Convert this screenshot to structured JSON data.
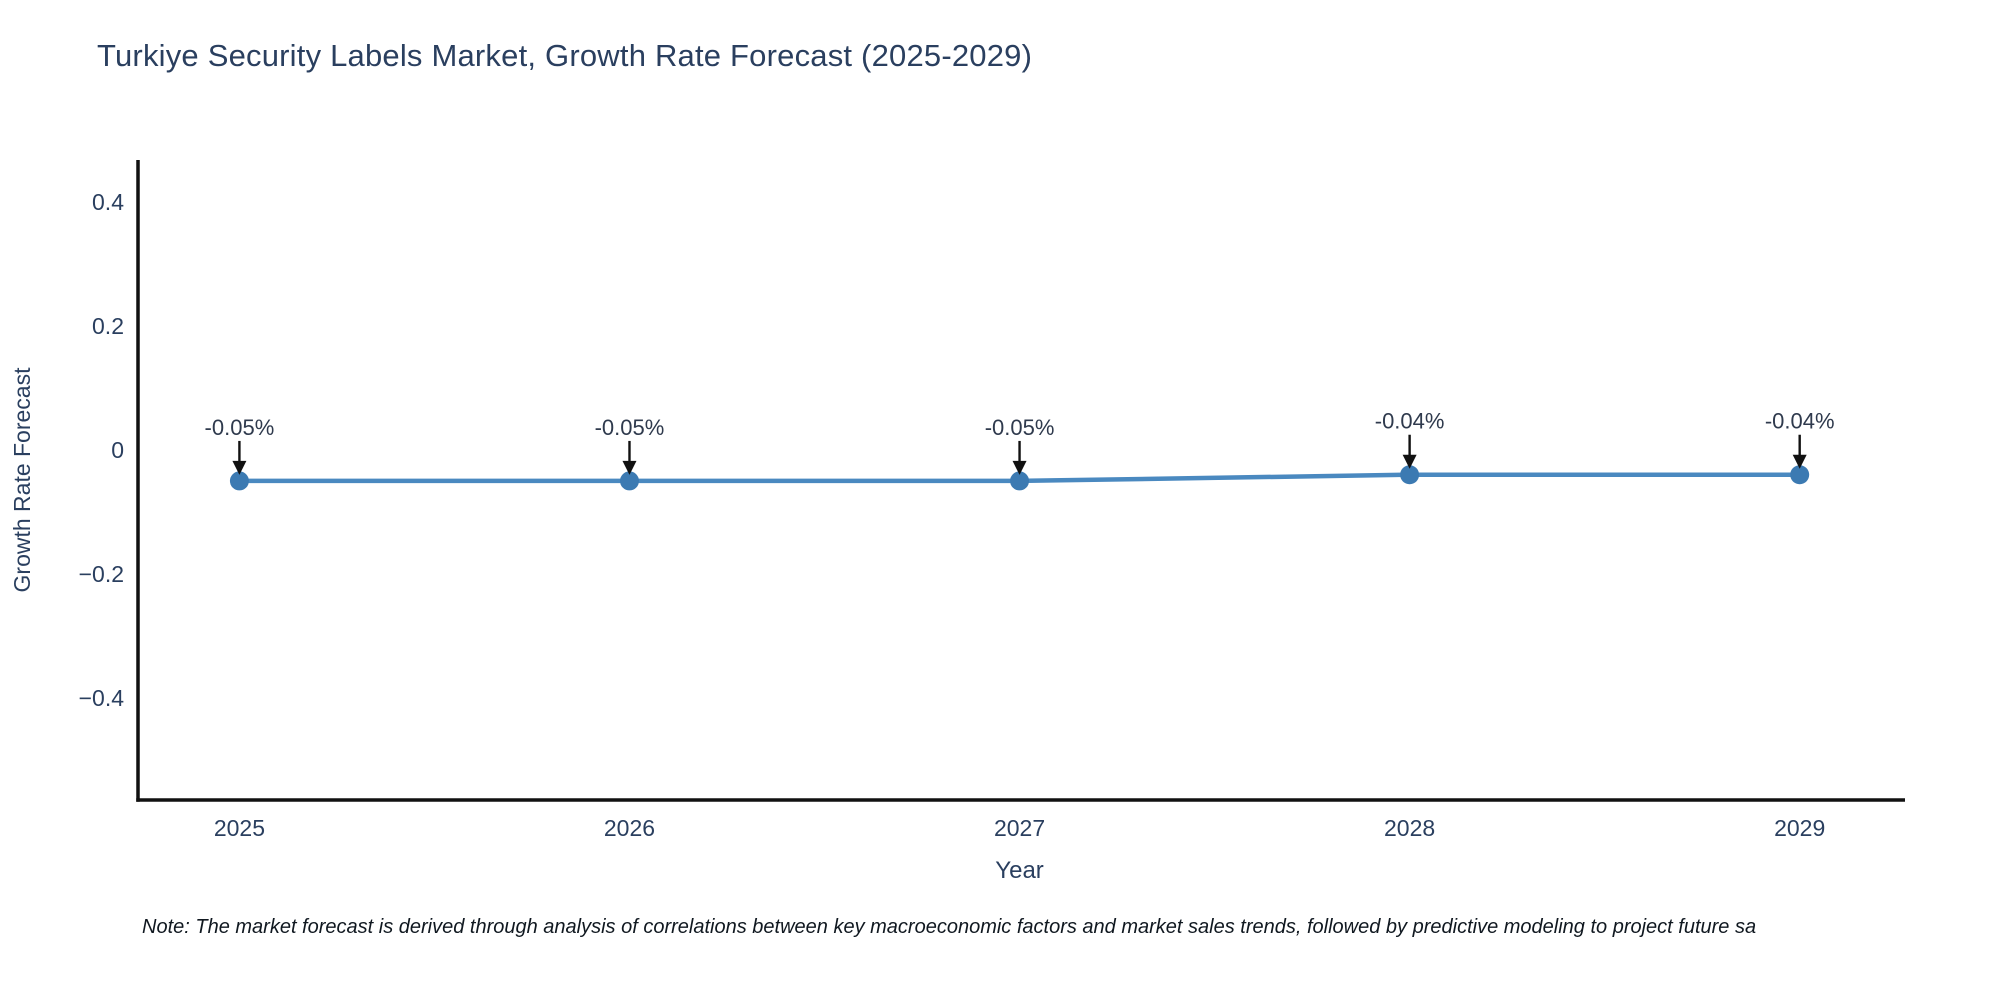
{
  "title": "Turkiye Security Labels Market, Growth Rate Forecast (2025-2029)",
  "note": {
    "text": "Note: The market forecast is derived through analysis of correlations between key macroeconomic factors and market sales trends, followed by predictive modeling to project future sa"
  },
  "chart_data": {
    "type": "line",
    "title": "Turkiye Security Labels Market, Growth Rate Forecast (2025-2029)",
    "xlabel": "Year",
    "ylabel": "Growth Rate Forecast",
    "x": [
      2025,
      2026,
      2027,
      2028,
      2029
    ],
    "categories": [
      "2025",
      "2026",
      "2027",
      "2028",
      "2029"
    ],
    "values": [
      -0.05,
      -0.05,
      -0.05,
      -0.04,
      -0.04
    ],
    "point_labels": [
      "-0.05%",
      "-0.05%",
      "-0.05%",
      "-0.04%",
      "-0.04%"
    ],
    "yticks": [
      0.4,
      0.2,
      0,
      -0.2,
      -0.4
    ],
    "ytick_labels": [
      "0.4",
      "0.2",
      "0",
      "−0.2",
      "−0.4"
    ],
    "xlim": [
      2024.74,
      2029.27
    ],
    "ylim": [
      -0.565,
      0.468
    ],
    "grid": false,
    "legend": false,
    "colors": {
      "line": "#4a89c0",
      "marker": "#3c7ab2",
      "axis": "#111111",
      "tick_text": "#2a3f5f",
      "title_text": "#2a3f5f",
      "annotation_text": "#2f3a4d",
      "annotation_arrow": "#111111",
      "background": "#ffffff"
    }
  }
}
